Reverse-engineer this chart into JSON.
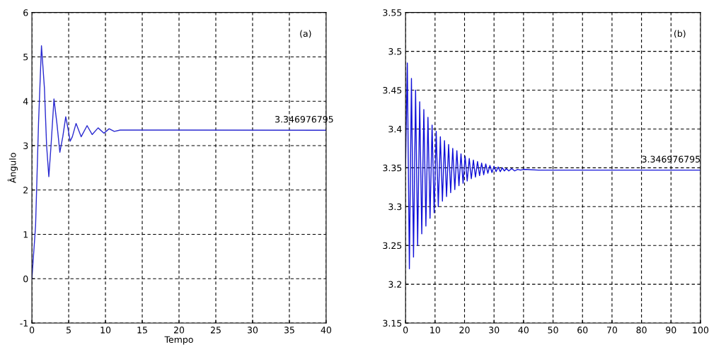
{
  "chart_data": [
    {
      "type": "line",
      "xlabel": "Tempo",
      "ylabel": "Ângulo",
      "grid": true,
      "line_style": "solid",
      "xlim": [
        0,
        40
      ],
      "ylim": [
        -1,
        6
      ],
      "xticks": [
        0,
        5,
        10,
        15,
        20,
        25,
        30,
        35,
        40
      ],
      "yticks": [
        -1,
        0,
        1,
        2,
        3,
        4,
        5,
        6
      ],
      "annotations": [
        "(a)",
        {
          "text": "3.346976795",
          "x": 33,
          "y": 3.347
        }
      ],
      "series": [
        {
          "color": "#2a2ad0",
          "x": [
            0,
            0.5,
            0.9,
            1.3,
            1.7,
            2.0,
            2.3,
            2.6,
            3.0,
            3.4,
            3.8,
            4.2,
            4.6,
            5.0,
            5.2,
            5.5,
            6.0,
            6.7,
            7.5,
            8.2,
            9.0,
            9.8,
            10.5,
            11.2,
            12,
            40
          ],
          "values": [
            0,
            1.2,
            3.5,
            5.25,
            4.3,
            3.0,
            2.3,
            3.0,
            4.05,
            3.5,
            2.85,
            3.2,
            3.65,
            3.3,
            3.1,
            3.2,
            3.5,
            3.2,
            3.45,
            3.25,
            3.4,
            3.28,
            3.38,
            3.32,
            3.35,
            3.347
          ]
        }
      ]
    },
    {
      "type": "line",
      "grid": true,
      "line_style": "solid",
      "xlim": [
        0,
        100
      ],
      "ylim": [
        3.15,
        3.55
      ],
      "xticks": [
        0,
        10,
        20,
        30,
        40,
        50,
        60,
        70,
        80,
        90,
        100
      ],
      "yticks": [
        3.15,
        3.2,
        3.25,
        3.3,
        3.35,
        3.4,
        3.45,
        3.5,
        3.55
      ],
      "annotations": [
        "(b)",
        {
          "text": "3.346976795",
          "x": 80,
          "y": 3.347
        }
      ],
      "series": [
        {
          "color": "#1010d8",
          "x": [
            0,
            0.6,
            1.3,
            2.0,
            2.7,
            3.4,
            4.1,
            4.8,
            5.5,
            6.2,
            6.9,
            7.6,
            8.3,
            9.0,
            9.7,
            10.4,
            11.1,
            11.8,
            12.5,
            13.2,
            13.9,
            14.6,
            15.3,
            16.0,
            16.7,
            17.4,
            18.1,
            18.8,
            19.5,
            20.2,
            20.9,
            21.6,
            22.3,
            23.0,
            23.7,
            24.4,
            25.1,
            25.8,
            26.5,
            27.2,
            27.9,
            28.6,
            29.3,
            30.0,
            30.7,
            31.4,
            32.1,
            32.8,
            33.5,
            34.2,
            35.0,
            36,
            37,
            38,
            39,
            40,
            45,
            100
          ],
          "values": [
            3.35,
            3.485,
            3.22,
            3.465,
            3.235,
            3.45,
            3.25,
            3.435,
            3.265,
            3.425,
            3.275,
            3.415,
            3.285,
            3.405,
            3.292,
            3.397,
            3.3,
            3.39,
            3.307,
            3.385,
            3.313,
            3.38,
            3.318,
            3.375,
            3.322,
            3.372,
            3.327,
            3.368,
            3.33,
            3.365,
            3.333,
            3.362,
            3.336,
            3.36,
            3.338,
            3.358,
            3.34,
            3.356,
            3.341,
            3.355,
            3.343,
            3.353,
            3.344,
            3.352,
            3.345,
            3.351,
            3.345,
            3.35,
            3.346,
            3.349,
            3.346,
            3.349,
            3.346,
            3.348,
            3.347,
            3.348,
            3.347,
            3.347
          ]
        }
      ]
    }
  ]
}
